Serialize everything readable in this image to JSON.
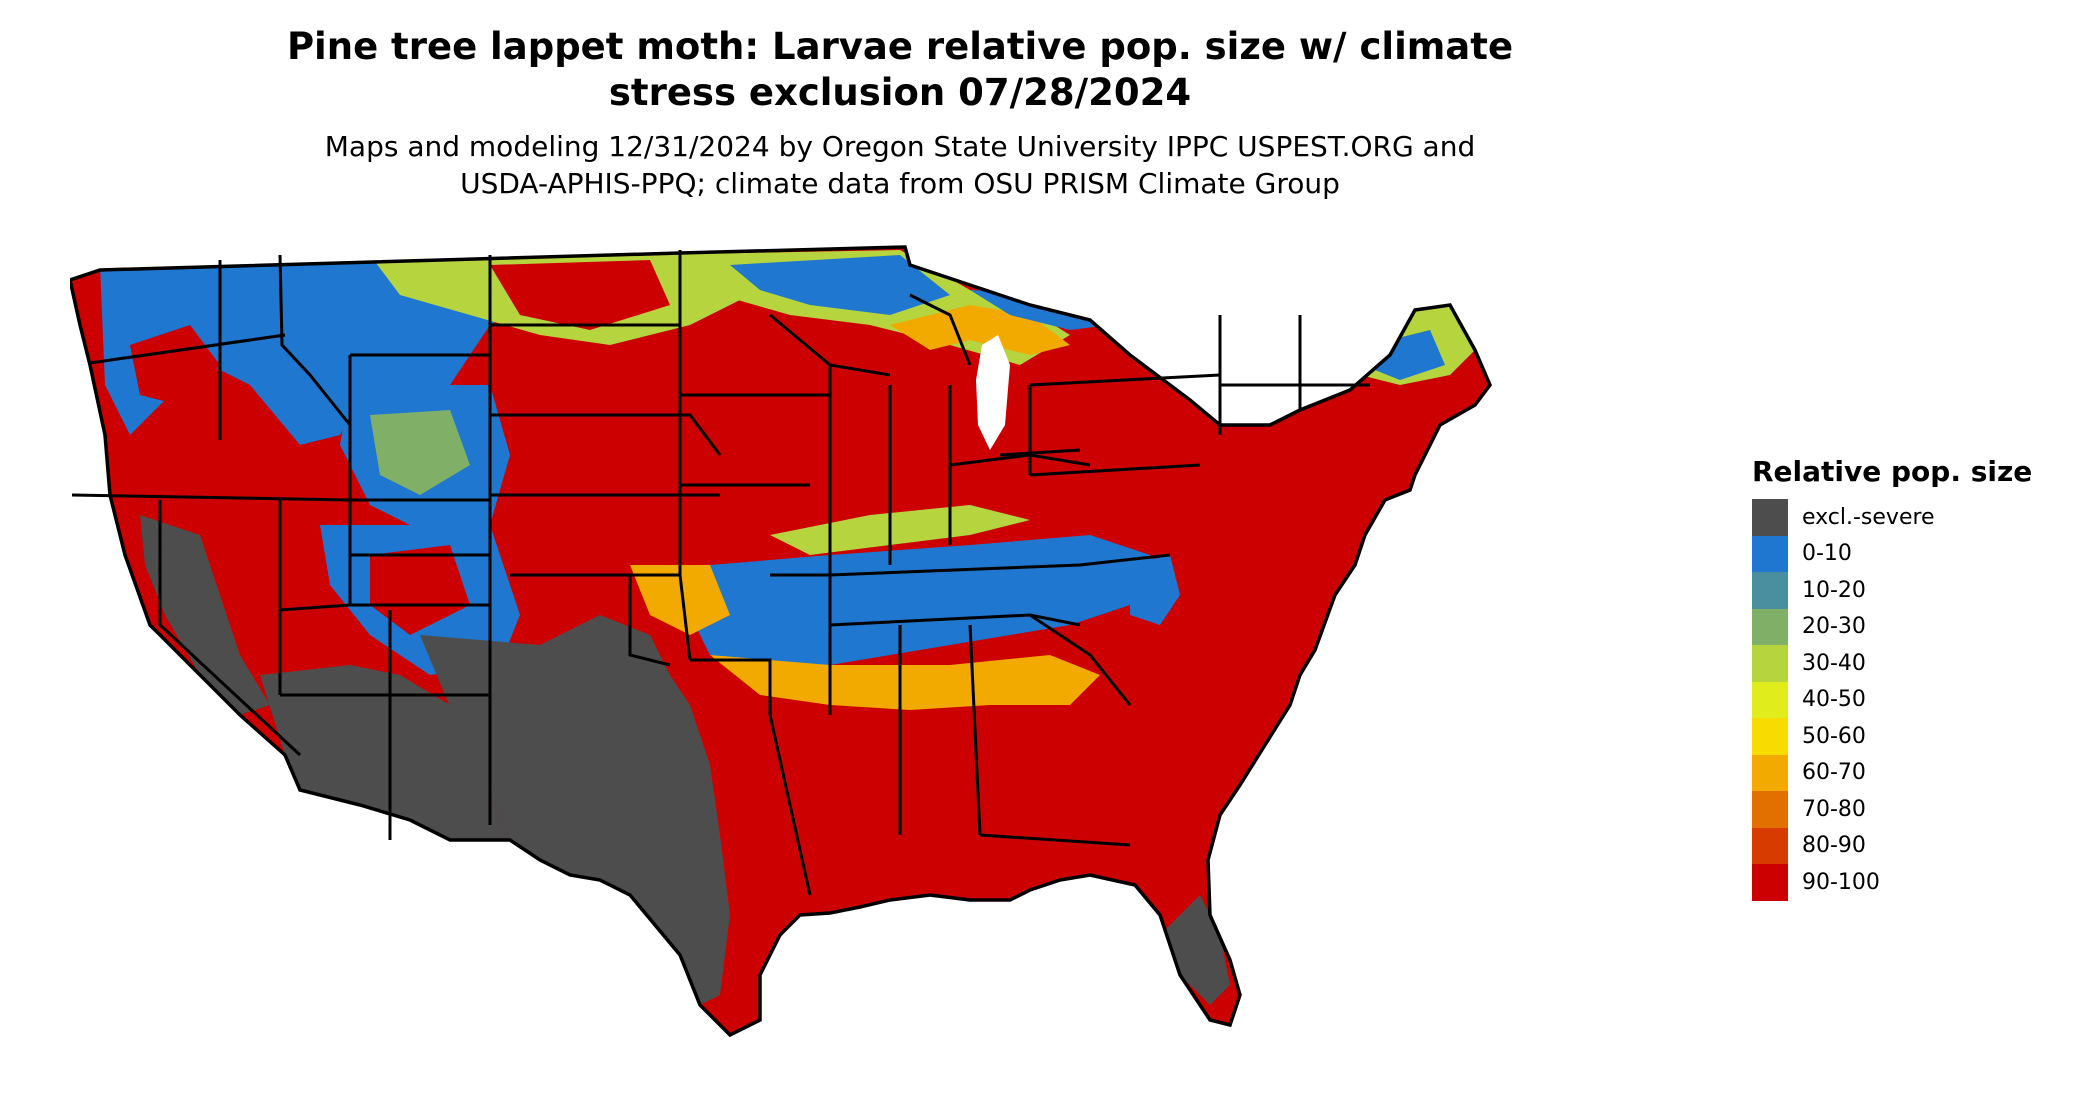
{
  "title_line1": "Pine tree lappet moth: Larvae relative pop. size w/ climate",
  "title_line2": "stress exclusion 07/28/2024",
  "subtitle_line1": "Maps and modeling 12/31/2024 by Oregon State University IPPC USPEST.ORG and",
  "subtitle_line2": "USDA-APHIS-PPQ; climate data from OSU PRISM Climate Group",
  "legend": {
    "title": "Relative pop. size",
    "items": [
      {
        "label": "excl.-severe",
        "color": "#4d4d4d"
      },
      {
        "label": "0-10",
        "color": "#1f77d0"
      },
      {
        "label": "10-20",
        "color": "#4a8fa0"
      },
      {
        "label": "20-30",
        "color": "#80b068"
      },
      {
        "label": "30-40",
        "color": "#b5d43e"
      },
      {
        "label": "40-50",
        "color": "#e0ec1c"
      },
      {
        "label": "50-60",
        "color": "#f7dc00"
      },
      {
        "label": "60-70",
        "color": "#f2aa00"
      },
      {
        "label": "70-80",
        "color": "#e27000"
      },
      {
        "label": "80-90",
        "color": "#d83b00"
      },
      {
        "label": "90-100",
        "color": "#cc0000"
      }
    ]
  }
}
